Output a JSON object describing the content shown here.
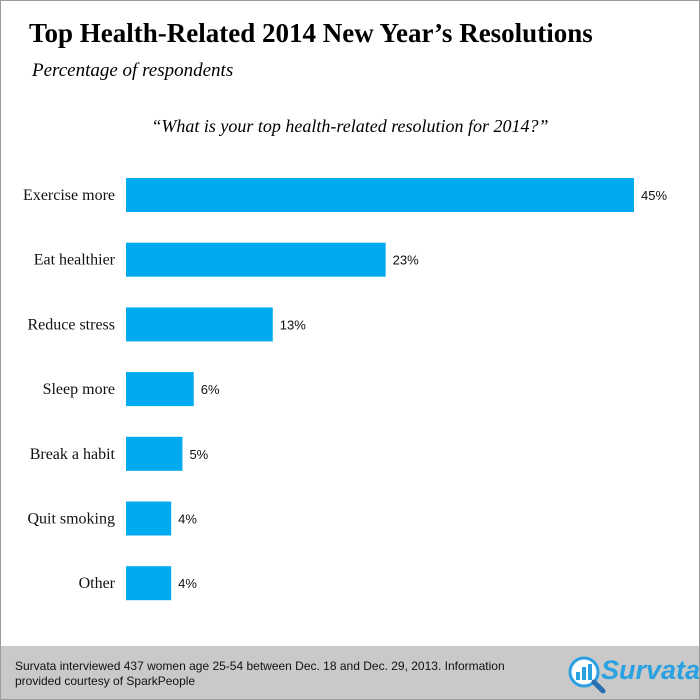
{
  "header": {
    "title": "Top Health-Related 2014 New Year’s Resolutions",
    "subtitle": "Percentage of respondents",
    "question": "“What is your top health-related resolution for 2014?”"
  },
  "chart_data": {
    "type": "bar",
    "orientation": "horizontal",
    "title": "Top Health-Related 2014 New Year’s Resolutions",
    "subtitle": "Percentage of respondents",
    "categories": [
      "Exercise more",
      "Eat healthier",
      "Reduce stress",
      "Sleep more",
      "Break a habit",
      "Quit smoking",
      "Other"
    ],
    "values": [
      45,
      23,
      13,
      6,
      5,
      4,
      4
    ],
    "value_labels": [
      "45%",
      "23%",
      "13%",
      "6%",
      "5%",
      "4%",
      "4%"
    ],
    "unit": "%",
    "xlim": [
      0,
      45
    ],
    "grid": false,
    "bar_color": "#00aaee"
  },
  "footer": {
    "note": "Survata interviewed 437 women age 25-54 between Dec. 18 and Dec. 29, 2013. Information provided courtesy of SparkPeople",
    "logo_text": "Survata",
    "logo_color": "#2aa1e0"
  }
}
